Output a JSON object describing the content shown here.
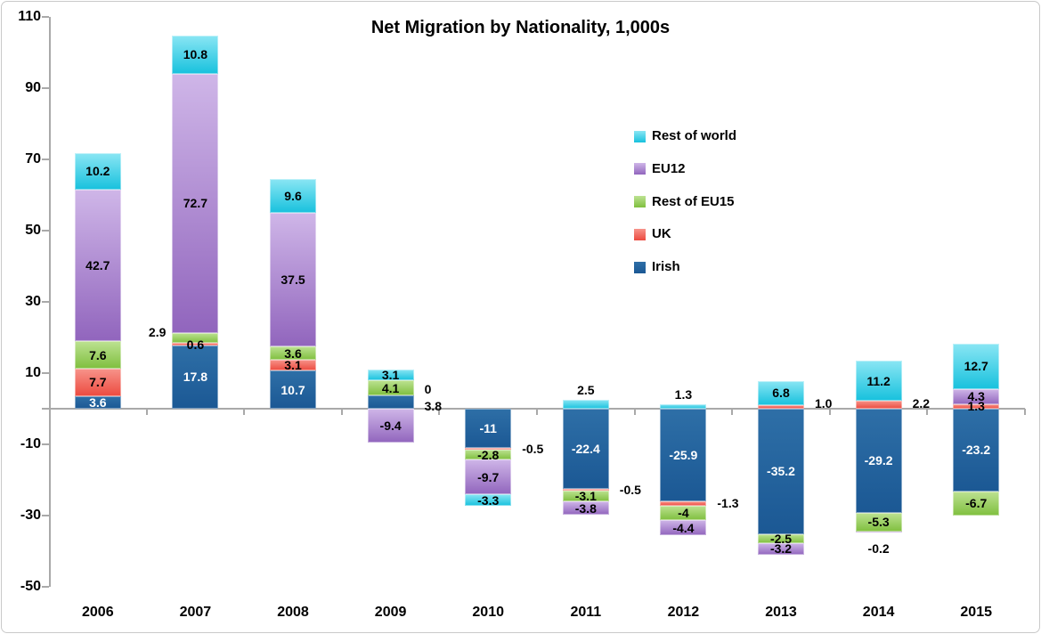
{
  "chart_data": {
    "type": "bar",
    "stacked": true,
    "title": "Net Migration by Nationality, 1,000s",
    "categories": [
      "2006",
      "2007",
      "2008",
      "2009",
      "2010",
      "2011",
      "2012",
      "2013",
      "2014",
      "2015"
    ],
    "series": [
      {
        "name": "Irish",
        "color_top": "#2e6fa7",
        "color_bottom": "#1b5894",
        "label_color_inside": "#ffffff",
        "values": [
          3.6,
          17.8,
          10.7,
          3.8,
          -11,
          -22.4,
          -25.9,
          -35.2,
          -29.2,
          -23.2
        ],
        "labels": [
          "3.6",
          "17.8",
          "10.7",
          "3.8",
          "-11",
          "-22.4",
          "-25.9",
          "-35.2",
          "-29.2",
          "-23.2"
        ]
      },
      {
        "name": "UK",
        "color_top": "#f7948b",
        "color_bottom": "#ec4a3f",
        "label_color_inside": "#000000",
        "values": [
          7.7,
          0.6,
          3.1,
          0,
          -0.5,
          -0.5,
          -1.3,
          1.0,
          2.2,
          1.3
        ],
        "labels": [
          "7.7",
          "0.6",
          "3.1",
          "0",
          "-0.5",
          "-0.5",
          "-1.3",
          "1.0",
          "2.2",
          "1.3"
        ]
      },
      {
        "name": "Rest of EU15",
        "color_top": "#bde292",
        "color_bottom": "#7fbf3e",
        "label_color_inside": "#000000",
        "values": [
          7.6,
          2.9,
          3.6,
          4.1,
          -2.8,
          -3.1,
          -4,
          -2.5,
          -5.3,
          -6.7
        ],
        "labels": [
          "7.6",
          "2.9",
          "3.6",
          "4.1",
          "-2.8",
          "-3.1",
          "-4",
          "-2.5",
          "-5.3",
          "-6.7"
        ]
      },
      {
        "name": "EU12",
        "color_top": "#cfb6e8",
        "color_bottom": "#9165bd",
        "label_color_inside": "#000000",
        "values": [
          42.7,
          72.7,
          37.5,
          -9.4,
          -9.7,
          -3.8,
          -4.4,
          -3.2,
          -0.2,
          4.3
        ],
        "labels": [
          "42.7",
          "72.7",
          "37.5",
          "-9.4",
          "-9.7",
          "-3.8",
          "-4.4",
          "-3.2",
          "-0.2",
          "4.3"
        ]
      },
      {
        "name": "Rest of world",
        "color_top": "#8ae6f4",
        "color_bottom": "#17c1dd",
        "label_color_inside": "#000000",
        "values": [
          10.2,
          10.8,
          9.6,
          3.1,
          -3.3,
          2.5,
          1.3,
          6.8,
          11.2,
          12.7
        ],
        "labels": [
          "10.2",
          "10.8",
          "9.6",
          "3.1",
          "-3.3",
          "2.5",
          "1.3",
          "6.8",
          "11.2",
          "12.7"
        ]
      }
    ],
    "label_placement": {
      "Rest of EU15|2007": {
        "pos": "left",
        "dy": -7
      },
      "UK|2009": {
        "pos": "right",
        "dy": -7
      },
      "Irish|2009": {
        "pos": "right",
        "dy": 5
      },
      "UK|2010": {
        "pos": "right"
      },
      "UK|2011": {
        "pos": "right"
      },
      "Rest of world|2011": {
        "pos": "above"
      },
      "UK|2012": {
        "pos": "right"
      },
      "Rest of world|2012": {
        "pos": "above"
      },
      "UK|2013": {
        "pos": "right",
        "dy": -4
      },
      "UK|2014": {
        "pos": "right",
        "dy": -2
      },
      "EU12|2014": {
        "pos": "below"
      }
    },
    "ylim": [
      -50,
      110
    ],
    "yticks": [
      "110",
      "90",
      "70",
      "50",
      "30",
      "10",
      "-10",
      "-30",
      "-50"
    ],
    "ytick_values": [
      110,
      90,
      70,
      50,
      30,
      10,
      -10,
      -30,
      -50
    ],
    "grid": false,
    "legend_position": "upper-right",
    "legend": [
      "Rest of world",
      "EU12",
      "Rest of EU15",
      "UK",
      "Irish"
    ]
  },
  "colors": {
    "axis": "#a9a9a9",
    "frame_border": "#c9c9c9",
    "label_text": "#000000",
    "label_text_on_dark": "#ffffff",
    "background": "#ffffff"
  }
}
